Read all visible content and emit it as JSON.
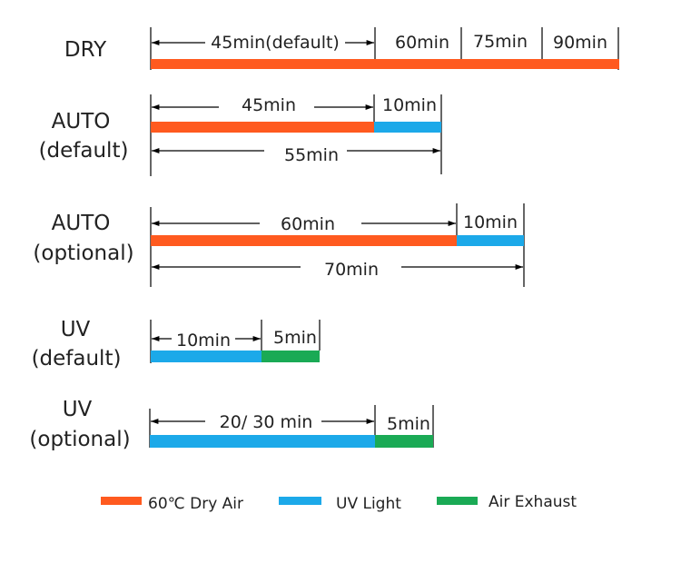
{
  "colors": {
    "dry_air": "#FF5A1F",
    "uv_light": "#1CA9E9",
    "air_exhaust": "#1AAA55",
    "line": "#000000",
    "text": "#222222"
  },
  "modes": {
    "dry": {
      "name": "DRY",
      "labels": [
        "45min(default)",
        "60min",
        "75min",
        "90min"
      ]
    },
    "auto_default": {
      "name_line1": "AUTO",
      "name_line2": "(default)",
      "labels": [
        "45min",
        "10min",
        "55min"
      ]
    },
    "auto_optional": {
      "name_line1": "AUTO",
      "name_line2": "(optional)",
      "labels": [
        "60min",
        "10min",
        "70min"
      ]
    },
    "uv_default": {
      "name_line1": "UV",
      "name_line2": "(default)",
      "labels": [
        "10min",
        "5min"
      ]
    },
    "uv_optional": {
      "name_line1": "UV",
      "name_line2": "(optional)",
      "labels": [
        "20/ 30 min",
        "5min"
      ]
    }
  },
  "legend": {
    "items": [
      {
        "label": "60℃ Dry Air",
        "color": "#FF5A1F"
      },
      {
        "label": "UV Light",
        "color": "#1CA9E9"
      },
      {
        "label": "Air Exhaust",
        "color": "#1AAA55"
      }
    ]
  }
}
